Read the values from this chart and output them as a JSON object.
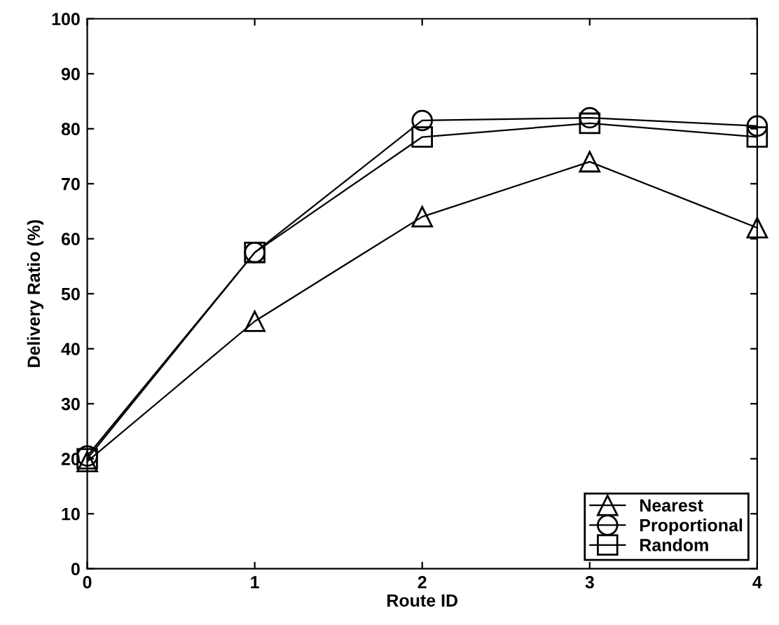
{
  "chart_data": {
    "type": "line",
    "xlabel": "Route ID",
    "ylabel": "Delivery Ratio (%)",
    "x": [
      0,
      1,
      2,
      3,
      4
    ],
    "series": [
      {
        "name": "Nearest",
        "color": "#000000",
        "marker": "triangle",
        "values": [
          19.5,
          45,
          64,
          74,
          62
        ]
      },
      {
        "name": "Proportional",
        "color": "#000000",
        "marker": "circle",
        "values": [
          20.5,
          57.5,
          81.5,
          82,
          80.5
        ]
      },
      {
        "name": "Random",
        "color": "#000000",
        "marker": "square",
        "values": [
          20,
          57.5,
          78.5,
          81,
          78.5
        ]
      }
    ],
    "xlim": [
      0,
      4
    ],
    "xticks": [
      0,
      1,
      2,
      3,
      4
    ],
    "ylim": [
      0,
      100
    ],
    "yticks": [
      0,
      10,
      20,
      30,
      40,
      50,
      60,
      70,
      80,
      90,
      100
    ],
    "grid": false,
    "legend": "bottom right",
    "line_style": "solid"
  }
}
